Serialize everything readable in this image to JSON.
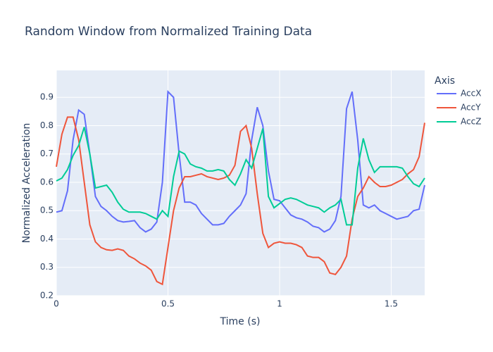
{
  "chart_data": {
    "type": "line",
    "title": "Random Window from Normalized Training Data",
    "x_label": "Time (s)",
    "y_label": "Normalized Acceleration",
    "legend_title": "Axis",
    "legend_position": "right",
    "grid": true,
    "x": [
      0,
      0.025,
      0.05,
      0.075,
      0.1,
      0.125,
      0.15,
      0.175,
      0.2,
      0.225,
      0.25,
      0.275,
      0.3,
      0.325,
      0.35,
      0.375,
      0.4,
      0.425,
      0.45,
      0.475,
      0.5,
      0.525,
      0.55,
      0.575,
      0.6,
      0.625,
      0.65,
      0.675,
      0.7,
      0.725,
      0.75,
      0.775,
      0.8,
      0.825,
      0.85,
      0.875,
      0.9,
      0.925,
      0.95,
      0.975,
      1,
      1.025,
      1.05,
      1.075,
      1.1,
      1.125,
      1.15,
      1.175,
      1.2,
      1.225,
      1.25,
      1.275,
      1.3,
      1.325,
      1.35,
      1.375,
      1.4,
      1.425,
      1.45,
      1.475,
      1.5,
      1.525,
      1.55,
      1.575,
      1.6,
      1.625,
      1.65
    ],
    "series": [
      {
        "name": "AccX",
        "color": "#636efa",
        "values": [
          0.495,
          0.5,
          0.57,
          0.75,
          0.855,
          0.84,
          0.7,
          0.55,
          0.515,
          0.5,
          0.48,
          0.465,
          0.46,
          0.462,
          0.465,
          0.44,
          0.425,
          0.435,
          0.46,
          0.6,
          0.92,
          0.9,
          0.7,
          0.53,
          0.53,
          0.52,
          0.49,
          0.47,
          0.45,
          0.45,
          0.455,
          0.48,
          0.5,
          0.52,
          0.56,
          0.75,
          0.865,
          0.8,
          0.64,
          0.54,
          0.535,
          0.51,
          0.485,
          0.475,
          0.47,
          0.46,
          0.445,
          0.44,
          0.425,
          0.435,
          0.465,
          0.55,
          0.86,
          0.92,
          0.75,
          0.52,
          0.51,
          0.52,
          0.5,
          0.49,
          0.48,
          0.47,
          0.475,
          0.48,
          0.5,
          0.505,
          0.59
        ]
      },
      {
        "name": "AccY",
        "color": "#EF553B",
        "values": [
          0.655,
          0.77,
          0.83,
          0.83,
          0.75,
          0.6,
          0.45,
          0.39,
          0.37,
          0.362,
          0.36,
          0.365,
          0.36,
          0.34,
          0.33,
          0.315,
          0.305,
          0.29,
          0.25,
          0.24,
          0.37,
          0.5,
          0.58,
          0.62,
          0.62,
          0.625,
          0.63,
          0.62,
          0.615,
          0.61,
          0.615,
          0.625,
          0.66,
          0.78,
          0.8,
          0.72,
          0.56,
          0.42,
          0.37,
          0.385,
          0.39,
          0.385,
          0.385,
          0.38,
          0.37,
          0.34,
          0.335,
          0.335,
          0.32,
          0.28,
          0.275,
          0.3,
          0.34,
          0.47,
          0.55,
          0.58,
          0.62,
          0.6,
          0.585,
          0.585,
          0.59,
          0.6,
          0.61,
          0.63,
          0.645,
          0.69,
          0.81
        ]
      },
      {
        "name": "AccZ",
        "color": "#00cc96",
        "values": [
          0.605,
          0.615,
          0.645,
          0.695,
          0.73,
          0.795,
          0.7,
          0.58,
          0.585,
          0.59,
          0.565,
          0.53,
          0.505,
          0.495,
          0.495,
          0.495,
          0.49,
          0.48,
          0.47,
          0.5,
          0.48,
          0.62,
          0.71,
          0.7,
          0.665,
          0.655,
          0.65,
          0.64,
          0.64,
          0.645,
          0.64,
          0.61,
          0.59,
          0.63,
          0.68,
          0.65,
          0.72,
          0.79,
          0.55,
          0.51,
          0.525,
          0.54,
          0.545,
          0.54,
          0.53,
          0.52,
          0.515,
          0.51,
          0.495,
          0.51,
          0.52,
          0.54,
          0.45,
          0.45,
          0.65,
          0.755,
          0.68,
          0.635,
          0.655,
          0.655,
          0.655,
          0.655,
          0.65,
          0.62,
          0.595,
          0.585,
          0.615
        ]
      }
    ],
    "xlim": [
      0,
      1.65
    ],
    "ylim": [
      0.2,
      0.995
    ],
    "xticks": [
      0,
      0.5,
      1,
      1.5
    ],
    "yticks": [
      0.2,
      0.3,
      0.4,
      0.5,
      0.6,
      0.7,
      0.8,
      0.9
    ]
  }
}
